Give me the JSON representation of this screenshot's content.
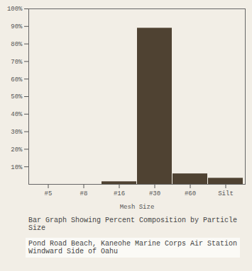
{
  "chart_data": {
    "type": "bar",
    "title": "Bar Graph Showing Percent Composition by Particle Size",
    "subtitle": "Pond Road Beach, Kaneohe Marine Corps Air Station\nWindward Side of Oahu",
    "x_label": "Mesh Size",
    "categories": [
      "#5",
      "#8",
      "#16",
      "#30",
      "#60",
      "Silt"
    ],
    "values": [
      0,
      0,
      1.5,
      89,
      6,
      3.5
    ],
    "color": "#4f4232",
    "ylim": [
      0,
      100
    ],
    "yticks": [
      {
        "value": 10,
        "label": "10%"
      },
      {
        "value": 20,
        "label": "20%"
      },
      {
        "value": 30,
        "label": "30%"
      },
      {
        "value": 40,
        "label": "40%"
      },
      {
        "value": 50,
        "label": "50%"
      },
      {
        "value": 60,
        "label": "60%"
      },
      {
        "value": 70,
        "label": "70%"
      },
      {
        "value": 80,
        "label": "80%"
      },
      {
        "value": 90,
        "label": "90%"
      },
      {
        "value": 100,
        "label": "100%"
      }
    ],
    "grid": false
  }
}
